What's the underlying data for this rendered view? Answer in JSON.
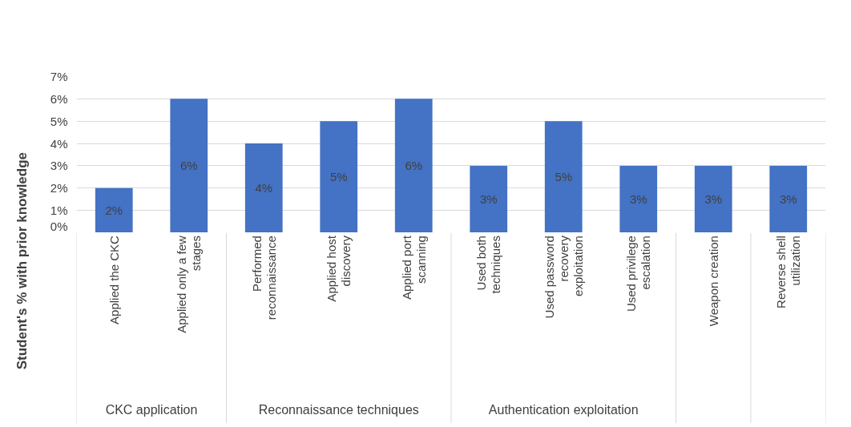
{
  "chart_data": {
    "type": "bar",
    "ylabel": "Student's % with prior knowledge",
    "categories": [
      "Applied the CKC",
      "Applied only a few stages",
      "Performed reconnaissance",
      "Applied host discovery",
      "Applied port scanning",
      "Used both techniques",
      "Used password recovery exploitation",
      "Used privilege escalation",
      "Weapon creation",
      "Reverse shell utilization"
    ],
    "values": [
      2,
      6,
      4,
      5,
      6,
      3,
      5,
      3,
      3,
      3
    ],
    "value_labels": [
      "2%",
      "6%",
      "4%",
      "5%",
      "6%",
      "3%",
      "5%",
      "3%",
      "3%",
      "3%"
    ],
    "color": "#4472c4",
    "ylim": [
      0,
      7
    ],
    "yticks": [
      {
        "value": 0,
        "label": "0%"
      },
      {
        "value": 1,
        "label": "1%"
      },
      {
        "value": 2,
        "label": "2%"
      },
      {
        "value": 3,
        "label": "3%"
      },
      {
        "value": 4,
        "label": "4%"
      },
      {
        "value": 5,
        "label": "5%"
      },
      {
        "value": 6,
        "label": "6%"
      },
      {
        "value": 7,
        "label": "7%"
      }
    ],
    "grid": "y",
    "annotations": [
      "CKC application",
      "Reconnaissance techniques",
      "Authentication exploitation"
    ]
  }
}
